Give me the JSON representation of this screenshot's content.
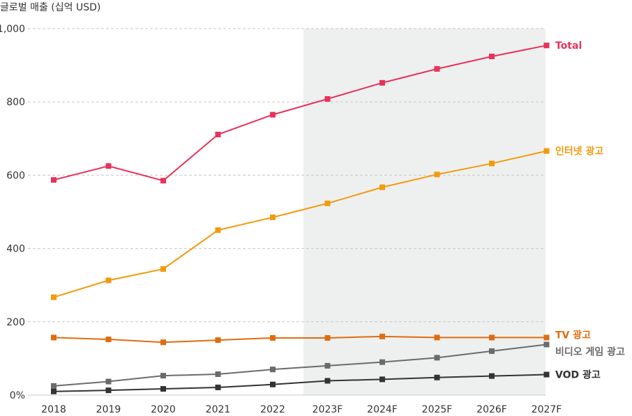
{
  "chart_data": {
    "type": "line",
    "ylabel": "글로벌 매출 (십억 USD)",
    "categories": [
      "2018",
      "2019",
      "2020",
      "2021",
      "2022",
      "2023F",
      "2024F",
      "2025F",
      "2026F",
      "2027F"
    ],
    "yticks": [
      "0%",
      "200",
      "400",
      "600",
      "800",
      "1,000"
    ],
    "ylim": [
      0,
      1000
    ],
    "grid": true,
    "forecast_shading_from": "2023F",
    "colors": {
      "forecast_band": "#eef0f0",
      "grid": "#c8c8c8"
    },
    "series": [
      {
        "name": "Total",
        "color": "#e8325a",
        "values": [
          587,
          625,
          585,
          711,
          765,
          808,
          852,
          890,
          924,
          954
        ]
      },
      {
        "name": "인터넷 광고",
        "color": "#f39a0c",
        "values": [
          267,
          313,
          344,
          450,
          485,
          523,
          567,
          602,
          632,
          666
        ]
      },
      {
        "name": "TV 광고",
        "color": "#e06c10",
        "values": [
          157,
          152,
          144,
          150,
          156,
          156,
          160,
          157,
          157,
          157
        ]
      },
      {
        "name": "비디오 게임 광고",
        "color": "#6b6b6b",
        "values": [
          25,
          37,
          53,
          57,
          70,
          80,
          90,
          102,
          120,
          138
        ]
      },
      {
        "name": "VOD 광고",
        "color": "#333333",
        "values": [
          10,
          13,
          17,
          21,
          29,
          39,
          43,
          48,
          52,
          56
        ]
      }
    ]
  }
}
